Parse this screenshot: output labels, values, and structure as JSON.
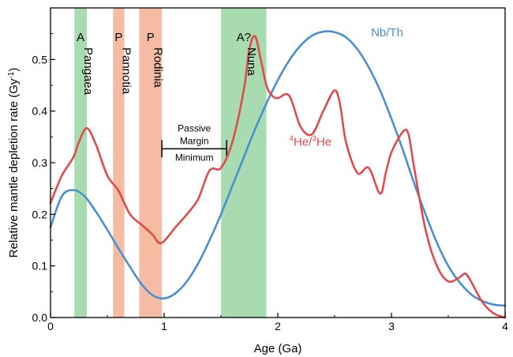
{
  "chart_data": {
    "type": "line",
    "xlabel": "Age (Ga)",
    "ylabel": "Relative mantle depletion rate (Gy",
    "ylabel_sup": "-1",
    "ylabel_end": ")",
    "xlim": [
      0,
      4
    ],
    "ylim": [
      0.0,
      0.6
    ],
    "x_ticks": [
      0,
      1,
      2,
      3,
      4
    ],
    "x_tick_labels": [
      "0",
      "1",
      "2",
      "3",
      "4"
    ],
    "y_ticks": [
      0.0,
      0.1,
      0.2,
      0.3,
      0.4,
      0.5
    ],
    "y_tick_labels": [
      "0.0",
      "0.1",
      "0.2",
      "0.3",
      "0.4",
      "0.5"
    ],
    "grid": false,
    "bands": [
      {
        "type_label": "A",
        "name": "Pangaea",
        "x_start": 0.21,
        "x_end": 0.32,
        "color": "#a9dbb0"
      },
      {
        "type_label": "P",
        "name": "Pannotia",
        "x_start": 0.55,
        "x_end": 0.65,
        "color": "#f6bca3"
      },
      {
        "type_label": "P",
        "name": "Rodinia",
        "x_start": 0.78,
        "x_end": 0.98,
        "color": "#f6bca3"
      },
      {
        "type_label": "A?",
        "name": "Nuna",
        "x_start": 1.5,
        "x_end": 1.9,
        "color": "#a9dbb0"
      }
    ],
    "annotation": {
      "lines": [
        "Passive",
        "Margin",
        "Minimum"
      ],
      "x_start": 0.98,
      "x_end": 1.55,
      "y": 0.327
    },
    "series": [
      {
        "name": "Nb/Th",
        "color": "#4a8fd0",
        "x": [
          0.0,
          0.1,
          0.2,
          0.3,
          0.4,
          0.5,
          0.6,
          0.7,
          0.8,
          0.9,
          1.0,
          1.1,
          1.2,
          1.3,
          1.4,
          1.5,
          1.6,
          1.7,
          1.8,
          1.9,
          2.0,
          2.1,
          2.2,
          2.3,
          2.4,
          2.5,
          2.6,
          2.7,
          2.8,
          2.9,
          3.0,
          3.1,
          3.2,
          3.3,
          3.4,
          3.5,
          3.6,
          3.7,
          3.8,
          3.9,
          4.0
        ],
        "y": [
          0.175,
          0.235,
          0.247,
          0.235,
          0.205,
          0.17,
          0.133,
          0.098,
          0.065,
          0.043,
          0.037,
          0.047,
          0.07,
          0.105,
          0.15,
          0.2,
          0.255,
          0.31,
          0.365,
          0.415,
          0.46,
          0.498,
          0.527,
          0.546,
          0.554,
          0.553,
          0.543,
          0.52,
          0.485,
          0.44,
          0.385,
          0.325,
          0.26,
          0.2,
          0.145,
          0.1,
          0.068,
          0.045,
          0.032,
          0.025,
          0.023
        ]
      },
      {
        "name": "He",
        "label_parts": [
          "4",
          "He/",
          "3",
          "He"
        ],
        "color": "#e04b4b",
        "x": [
          0.0,
          0.1,
          0.2,
          0.25,
          0.32,
          0.4,
          0.5,
          0.6,
          0.7,
          0.8,
          0.9,
          0.95,
          1.0,
          1.1,
          1.2,
          1.3,
          1.4,
          1.5,
          1.6,
          1.7,
          1.75,
          1.8,
          1.85,
          1.9,
          1.95,
          2.0,
          2.1,
          2.2,
          2.3,
          2.4,
          2.5,
          2.55,
          2.6,
          2.7,
          2.8,
          2.9,
          2.95,
          3.0,
          3.1,
          3.15,
          3.2,
          3.3,
          3.4,
          3.5,
          3.6,
          3.65,
          3.7,
          3.8,
          3.9,
          4.0
        ],
        "y": [
          0.222,
          0.275,
          0.31,
          0.34,
          0.367,
          0.335,
          0.275,
          0.245,
          0.2,
          0.18,
          0.16,
          0.145,
          0.148,
          0.175,
          0.2,
          0.23,
          0.285,
          0.29,
          0.34,
          0.44,
          0.52,
          0.545,
          0.5,
          0.45,
          0.43,
          0.425,
          0.43,
          0.37,
          0.355,
          0.4,
          0.44,
          0.41,
          0.34,
          0.28,
          0.29,
          0.24,
          0.28,
          0.32,
          0.36,
          0.355,
          0.29,
          0.17,
          0.1,
          0.07,
          0.078,
          0.085,
          0.07,
          0.03,
          0.008,
          0.0
        ]
      }
    ]
  }
}
